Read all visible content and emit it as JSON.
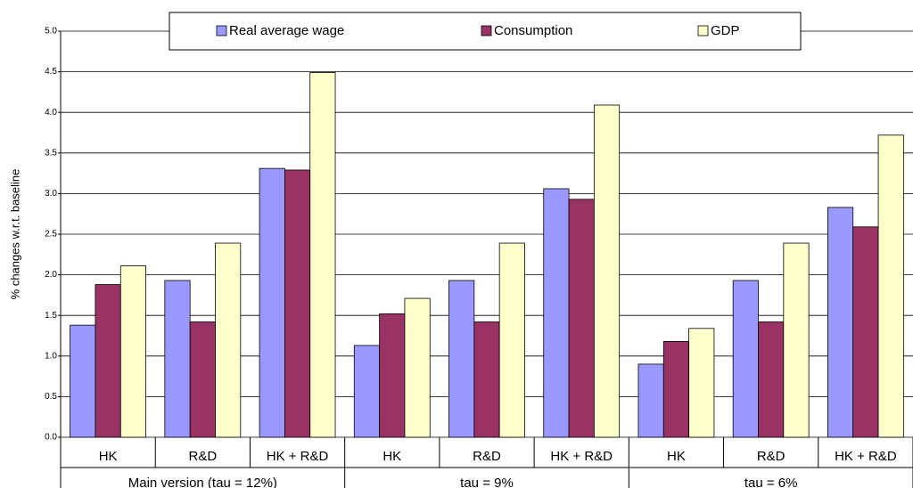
{
  "chart_data": {
    "type": "bar",
    "y_label": "% changes w.r.t. baseline",
    "categories": [
      "HK",
      "R&D",
      "HK + R&D",
      "HK",
      "R&D",
      "HK + R&D",
      "HK",
      "R&D",
      "HK + R&D"
    ],
    "groups": [
      "Main version (tau = 12%)",
      "tau = 9%",
      "tau = 6%"
    ],
    "series": [
      {
        "name": "Real average wage",
        "color": "#9999ff",
        "values": [
          1.38,
          1.93,
          3.31,
          1.13,
          1.93,
          3.06,
          0.9,
          1.93,
          2.83
        ]
      },
      {
        "name": "Consumption",
        "color": "#993366",
        "values": [
          1.88,
          1.42,
          3.29,
          1.52,
          1.42,
          2.93,
          1.18,
          1.42,
          2.59
        ]
      },
      {
        "name": "GDP",
        "color": "#ffffcc",
        "values": [
          2.11,
          2.39,
          4.49,
          1.71,
          2.39,
          4.09,
          1.34,
          2.39,
          3.72
        ]
      }
    ],
    "ylim": [
      0,
      5
    ],
    "yticks": [
      {
        "value": 0,
        "label": "0.0"
      },
      {
        "value": 0.5,
        "label": "0.5"
      },
      {
        "value": 1,
        "label": "1.0"
      },
      {
        "value": 1.5,
        "label": "1.5"
      },
      {
        "value": 2,
        "label": "2.0"
      },
      {
        "value": 2.5,
        "label": "2.5"
      },
      {
        "value": 3,
        "label": "3.0"
      },
      {
        "value": 3.5,
        "label": "3.5"
      },
      {
        "value": 4,
        "label": "4.0"
      },
      {
        "value": 4.5,
        "label": "4.5"
      },
      {
        "value": 5,
        "label": "5.0"
      }
    ],
    "grid": true
  }
}
